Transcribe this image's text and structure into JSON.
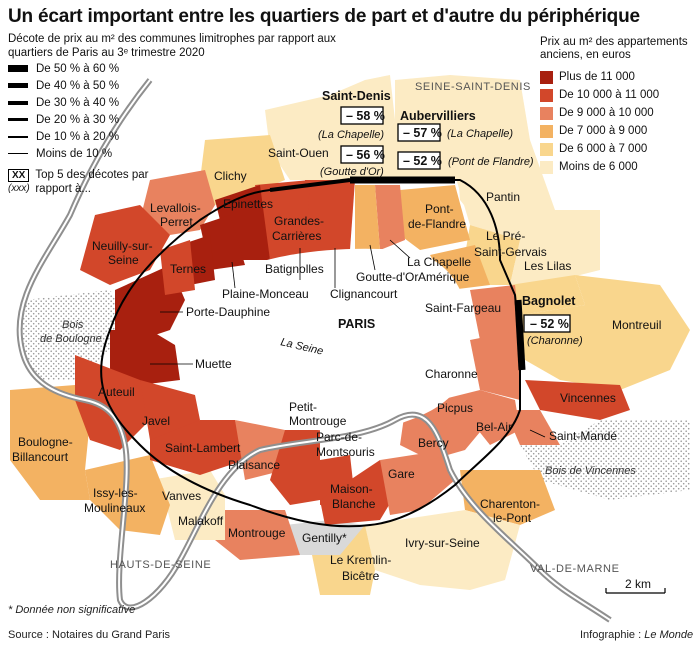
{
  "title": "Un écart important entre les quartiers de part et d'autre du périphérique",
  "legend_left": {
    "subtitle": "Décote de prix au m² des communes limitrophes par rapport aux quartiers de Paris au 3ᵉ trimestre 2020",
    "items": [
      "De 50 % à 60 %",
      "De 40 % à 50 %",
      "De 30 % à 40 %",
      "De 20 % à 30 %",
      "De 10 % à 20 %",
      "Moins de 10 %"
    ],
    "top5_box": "XX",
    "top5_xxx": "(xxx)",
    "top5_text": "Top 5 des décotes par rapport à..."
  },
  "legend_right": {
    "title": "Prix au m² des appartements anciens, en euros",
    "items": [
      {
        "label": "Plus de 11 000",
        "color": "#a8200f"
      },
      {
        "label": "De 10 000 à 11 000",
        "color": "#d2472a"
      },
      {
        "label": "De 9 000 à 10 000",
        "color": "#e8825f"
      },
      {
        "label": "De 7 000 à 9 000",
        "color": "#f3b262"
      },
      {
        "label": "De 6 000 à 7 000",
        "color": "#f9d68d"
      },
      {
        "label": "Moins de 6 000",
        "color": "#fcebc4"
      }
    ]
  },
  "map": {
    "departments": [
      "SEINE-SAINT-DENIS",
      "HAUTS-DE-SEINE",
      "VAL-DE-MARNE"
    ],
    "paris": "PARIS",
    "river": "La Seine",
    "woods": [
      "Bois de Boulogne",
      "Bois de Vincennes"
    ],
    "communes": [
      "Saint-Denis",
      "Aubervilliers",
      "Saint-Ouen",
      "Clichy",
      "Levallois-Perret",
      "Neuilly-sur-Seine",
      "Pantin",
      "Le Pré-Saint-Gervais",
      "Les Lilas",
      "Bagnolet",
      "Montreuil",
      "Vincennes",
      "Saint-Mandé",
      "Charenton-le-Pont",
      "Ivry-sur-Seine",
      "Le Kremlin-Bicêtre",
      "Gentilly*",
      "Montrouge",
      "Malakoff",
      "Vanves",
      "Issy-les-Moulineaux",
      "Boulogne-Billancourt"
    ],
    "quartiers": [
      "Epinettes",
      "Grandes-Carrières",
      "Ternes",
      "Batignolles",
      "Plaine-Monceau",
      "Clignancourt",
      "La Chapelle",
      "Goutte-d'Or",
      "Pont-de-Flandre",
      "Amérique",
      "Saint-Fargeau",
      "Charonne",
      "Picpus",
      "Bel-Air",
      "Bercy",
      "Gare",
      "Maison-Blanche",
      "Petit-Montrouge",
      "Parc-de-Montsouris",
      "Plaisance",
      "Saint-Lambert",
      "Javel",
      "Auteuil",
      "Muette",
      "Porte-Dauphine"
    ],
    "top5": [
      {
        "pct": "– 58 %",
        "ref": "(La Chapelle)"
      },
      {
        "pct": "– 56 %",
        "ref": "(Goutte d'Or)"
      },
      {
        "pct": "– 57 %",
        "ref": "(La Chapelle)"
      },
      {
        "pct": "– 52 %",
        "ref": "(Pont de Flandre)"
      },
      {
        "pct": "– 52 %",
        "ref": "(Charonne)"
      }
    ],
    "scale": "2 km"
  },
  "footnote": "* Donnée non significative",
  "source": "Source : Notaires du Grand Paris",
  "credit_prefix": "Infographie : ",
  "credit_name": "Le Monde"
}
